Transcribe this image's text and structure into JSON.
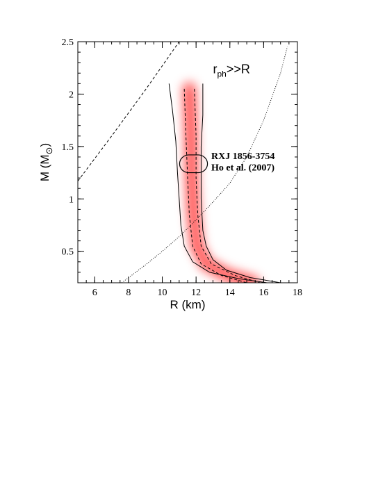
{
  "chart_data": {
    "type": "line",
    "xlabel": "R (km)",
    "ylabel": {
      "text": "M (M",
      "sub": "⊙",
      "after": ")"
    },
    "xlim": [
      5,
      18
    ],
    "ylim": [
      0.2,
      2.5
    ],
    "xticks": [
      6,
      8,
      10,
      12,
      14,
      16,
      18
    ],
    "yticks": [
      0.5,
      1,
      1.5,
      2,
      2.5
    ],
    "shading_color": "#ff0000",
    "series": [
      {
        "color": "#000000",
        "style": "dashed",
        "x": [
          5,
          7,
          9,
          11
        ],
        "values": [
          1.17,
          1.6,
          2.04,
          2.5
        ]
      },
      {
        "color": "#000000",
        "style": "dotted",
        "x": [
          7.6,
          9,
          10,
          11,
          12,
          13,
          14,
          15,
          16,
          17,
          17.4
        ],
        "values": [
          0.2,
          0.37,
          0.5,
          0.64,
          0.8,
          0.97,
          1.15,
          1.4,
          1.75,
          2.2,
          2.45
        ]
      },
      {
        "color": "#000000",
        "style": "solid",
        "x": [
          10.4,
          10.6,
          10.8,
          10.9,
          11.0,
          11.1,
          11.3,
          11.8,
          12.8,
          14.5,
          16.2
        ],
        "values": [
          2.1,
          1.85,
          1.55,
          1.25,
          1.0,
          0.75,
          0.55,
          0.4,
          0.3,
          0.24,
          0.2
        ]
      },
      {
        "color": "#000000",
        "style": "solid",
        "x": [
          12.4,
          12.4,
          12.3,
          12.3,
          12.4,
          12.6,
          13.0,
          13.8,
          15.2,
          17.0
        ],
        "values": [
          2.1,
          1.8,
          1.5,
          1.0,
          0.7,
          0.55,
          0.42,
          0.32,
          0.25,
          0.2
        ]
      },
      {
        "color": "#000000",
        "style": "dashed",
        "x": [
          11.3,
          11.4,
          11.5,
          11.6,
          11.8,
          12.3,
          13.5,
          15.0
        ],
        "values": [
          2.05,
          1.6,
          1.2,
          0.85,
          0.55,
          0.38,
          0.27,
          0.2
        ]
      },
      {
        "color": "#000000",
        "style": "dashed",
        "x": [
          11.9,
          12.0,
          12.0,
          12.1,
          12.3,
          12.9,
          14.3,
          15.8
        ],
        "values": [
          2.05,
          1.6,
          1.2,
          0.85,
          0.55,
          0.38,
          0.27,
          0.2
        ]
      }
    ],
    "ellipse": {
      "x": 11.85,
      "y": 1.335,
      "width": 1.65,
      "height": 0.17
    },
    "annotations": [
      {
        "text": "r",
        "sub": "ph",
        "after": ">>R",
        "x": 13.0,
        "y": 2.2
      },
      {
        "text": "RXJ 1856-3754",
        "x": 12.9,
        "y": 1.38
      },
      {
        "text": "Ho et al. (2007)",
        "x": 12.9,
        "y": 1.27
      }
    ]
  }
}
